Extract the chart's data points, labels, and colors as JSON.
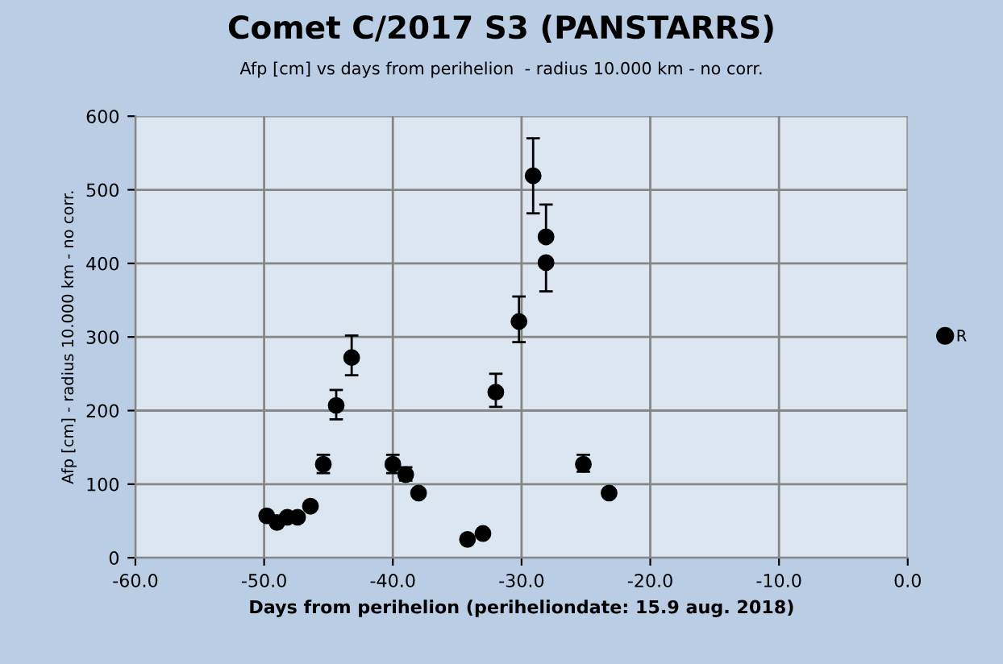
{
  "chart_data": {
    "type": "scatter",
    "title": "Comet C/2017 S3 (PANSTARRS)",
    "subtitle": "Afp [cm] vs days from perihelion  - radius 10.000 km - no corr.",
    "xlabel": "Days from perihelion (periheliondate: 15.9 aug. 2018)",
    "ylabel": "Afp [cm] - radius 10.000 km - no corr.",
    "xlim": [
      -60,
      0
    ],
    "xticks": [
      {
        "value": -60,
        "label": "-60.0"
      },
      {
        "value": -50,
        "label": "-50.0"
      },
      {
        "value": -40,
        "label": "-40.0"
      },
      {
        "value": -30,
        "label": "-30.0"
      },
      {
        "value": -20,
        "label": "-20.0"
      },
      {
        "value": -10,
        "label": "-10.0"
      },
      {
        "value": 0,
        "label": "0.0"
      }
    ],
    "ylim": [
      0,
      600
    ],
    "yticks": [
      0,
      100,
      200,
      300,
      400,
      500,
      600
    ],
    "grid": true,
    "legend": "right",
    "marker": "circle",
    "series": [
      {
        "name": "R",
        "color": "#000000",
        "x": [
          -49.8,
          -49.0,
          -48.2,
          -47.4,
          -46.4,
          -45.4,
          -44.4,
          -43.2,
          -40.0,
          -39.0,
          -38.0,
          -34.2,
          -33.0,
          -32.0,
          -30.2,
          -29.1,
          -28.1,
          -28.1,
          -25.2,
          -23.2
        ],
        "values": [
          57,
          48,
          55,
          55,
          70,
          127,
          207,
          272,
          127,
          113,
          88,
          25,
          33,
          225,
          321,
          519,
          436,
          401,
          127,
          88
        ],
        "errors": [
          null,
          null,
          null,
          null,
          null,
          [
            115,
            140
          ],
          [
            188,
            228
          ],
          [
            248,
            302
          ],
          [
            115,
            140
          ],
          [
            105,
            123
          ],
          null,
          null,
          null,
          [
            205,
            250
          ],
          [
            293,
            355
          ],
          [
            468,
            570
          ],
          [
            436,
            480
          ],
          [
            362,
            401
          ],
          [
            117,
            140
          ],
          [
            88,
            93
          ]
        ]
      }
    ]
  }
}
